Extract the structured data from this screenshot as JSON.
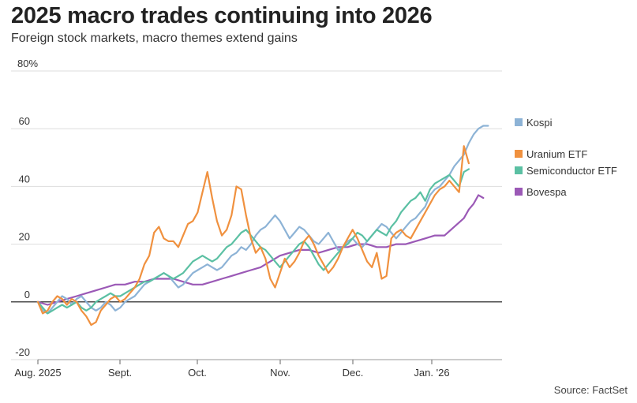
{
  "header": {
    "title": "2025 macro trades continuing into 2026",
    "subtitle": "Foreign stock markets, macro themes extend gains"
  },
  "footer": {
    "source": "Source: FactSet"
  },
  "chart_data": {
    "type": "line",
    "title": "2025 macro trades continuing into 2026",
    "subtitle": "Foreign stock markets, macro themes extend gains",
    "x_ticks": [
      "Aug. 2025",
      "Sept.",
      "Oct.",
      "Nov.",
      "Dec.",
      "Jan. '26"
    ],
    "y_ticks": [
      -20,
      0,
      20,
      40,
      60
    ],
    "y_top_label": "80%",
    "ylim": [
      -20,
      80
    ],
    "x_range_days": [
      0,
      180
    ],
    "grid": true,
    "legend_position": "right",
    "series": [
      {
        "name": "Kospi",
        "color": "#8db3d6",
        "points": [
          [
            0,
            0
          ],
          [
            2,
            -3
          ],
          [
            4,
            -4
          ],
          [
            6,
            -2
          ],
          [
            8,
            0
          ],
          [
            10,
            2
          ],
          [
            12,
            1
          ],
          [
            14,
            -1
          ],
          [
            16,
            1
          ],
          [
            18,
            2
          ],
          [
            20,
            0
          ],
          [
            22,
            -2
          ],
          [
            24,
            -3
          ],
          [
            26,
            -2
          ],
          [
            28,
            0
          ],
          [
            30,
            -1
          ],
          [
            32,
            -3
          ],
          [
            34,
            -2
          ],
          [
            36,
            0
          ],
          [
            38,
            1
          ],
          [
            40,
            2
          ],
          [
            42,
            4
          ],
          [
            44,
            6
          ],
          [
            46,
            7
          ],
          [
            48,
            8
          ],
          [
            50,
            9
          ],
          [
            52,
            10
          ],
          [
            54,
            9
          ],
          [
            56,
            7
          ],
          [
            58,
            5
          ],
          [
            60,
            6
          ],
          [
            62,
            8
          ],
          [
            64,
            10
          ],
          [
            66,
            11
          ],
          [
            68,
            12
          ],
          [
            70,
            13
          ],
          [
            72,
            12
          ],
          [
            74,
            11
          ],
          [
            76,
            12
          ],
          [
            78,
            14
          ],
          [
            80,
            16
          ],
          [
            82,
            17
          ],
          [
            84,
            19
          ],
          [
            86,
            18
          ],
          [
            88,
            20
          ],
          [
            90,
            23
          ],
          [
            92,
            25
          ],
          [
            94,
            26
          ],
          [
            96,
            28
          ],
          [
            98,
            30
          ],
          [
            100,
            28
          ],
          [
            102,
            25
          ],
          [
            104,
            22
          ],
          [
            106,
            24
          ],
          [
            108,
            26
          ],
          [
            110,
            25
          ],
          [
            112,
            23
          ],
          [
            114,
            21
          ],
          [
            116,
            20
          ],
          [
            118,
            22
          ],
          [
            120,
            24
          ],
          [
            122,
            21
          ],
          [
            124,
            18
          ],
          [
            126,
            19
          ],
          [
            128,
            21
          ],
          [
            130,
            22
          ],
          [
            132,
            20
          ],
          [
            134,
            19
          ],
          [
            136,
            21
          ],
          [
            138,
            23
          ],
          [
            140,
            25
          ],
          [
            142,
            27
          ],
          [
            144,
            26
          ],
          [
            146,
            24
          ],
          [
            148,
            22
          ],
          [
            150,
            24
          ],
          [
            152,
            26
          ],
          [
            154,
            28
          ],
          [
            156,
            29
          ],
          [
            158,
            31
          ],
          [
            160,
            33
          ],
          [
            162,
            37
          ],
          [
            164,
            39
          ],
          [
            166,
            40
          ],
          [
            168,
            42
          ],
          [
            170,
            44
          ],
          [
            172,
            47
          ],
          [
            174,
            49
          ],
          [
            176,
            51
          ],
          [
            178,
            55
          ],
          [
            180,
            58
          ],
          [
            182,
            60
          ],
          [
            184,
            61
          ],
          [
            186,
            61
          ]
        ]
      },
      {
        "name": "Uranium ETF",
        "color": "#f0913f",
        "points": [
          [
            0,
            0
          ],
          [
            2,
            -4
          ],
          [
            4,
            -3
          ],
          [
            6,
            0
          ],
          [
            8,
            2
          ],
          [
            10,
            1
          ],
          [
            12,
            -1
          ],
          [
            14,
            1
          ],
          [
            16,
            0
          ],
          [
            18,
            -3
          ],
          [
            20,
            -5
          ],
          [
            22,
            -8
          ],
          [
            24,
            -7
          ],
          [
            26,
            -3
          ],
          [
            28,
            -1
          ],
          [
            30,
            1
          ],
          [
            32,
            2
          ],
          [
            34,
            0
          ],
          [
            36,
            1
          ],
          [
            38,
            3
          ],
          [
            40,
            5
          ],
          [
            42,
            8
          ],
          [
            44,
            13
          ],
          [
            46,
            16
          ],
          [
            48,
            24
          ],
          [
            50,
            26
          ],
          [
            52,
            22
          ],
          [
            54,
            21
          ],
          [
            56,
            21
          ],
          [
            58,
            19
          ],
          [
            60,
            23
          ],
          [
            62,
            27
          ],
          [
            64,
            28
          ],
          [
            66,
            31
          ],
          [
            68,
            38
          ],
          [
            70,
            45
          ],
          [
            72,
            36
          ],
          [
            74,
            28
          ],
          [
            76,
            23
          ],
          [
            78,
            25
          ],
          [
            80,
            30
          ],
          [
            82,
            40
          ],
          [
            84,
            39
          ],
          [
            86,
            30
          ],
          [
            88,
            22
          ],
          [
            90,
            17
          ],
          [
            92,
            19
          ],
          [
            94,
            15
          ],
          [
            96,
            8
          ],
          [
            98,
            5
          ],
          [
            100,
            10
          ],
          [
            102,
            15
          ],
          [
            104,
            12
          ],
          [
            106,
            14
          ],
          [
            108,
            17
          ],
          [
            110,
            21
          ],
          [
            112,
            23
          ],
          [
            114,
            20
          ],
          [
            116,
            16
          ],
          [
            118,
            13
          ],
          [
            120,
            10
          ],
          [
            122,
            12
          ],
          [
            124,
            15
          ],
          [
            126,
            19
          ],
          [
            128,
            22
          ],
          [
            130,
            25
          ],
          [
            132,
            22
          ],
          [
            134,
            18
          ],
          [
            136,
            14
          ],
          [
            138,
            12
          ],
          [
            140,
            17
          ],
          [
            142,
            8
          ],
          [
            144,
            9
          ],
          [
            146,
            22
          ],
          [
            148,
            24
          ],
          [
            150,
            25
          ],
          [
            152,
            23
          ],
          [
            154,
            22
          ],
          [
            156,
            25
          ],
          [
            158,
            28
          ],
          [
            160,
            31
          ],
          [
            162,
            34
          ],
          [
            164,
            37
          ],
          [
            166,
            39
          ],
          [
            168,
            40
          ],
          [
            170,
            42
          ],
          [
            172,
            40
          ],
          [
            174,
            38
          ],
          [
            176,
            54
          ],
          [
            178,
            48
          ]
        ]
      },
      {
        "name": "Semiconductor ETF",
        "color": "#5bc0a3",
        "points": [
          [
            0,
            0
          ],
          [
            2,
            -2
          ],
          [
            4,
            -4
          ],
          [
            6,
            -3
          ],
          [
            8,
            -2
          ],
          [
            10,
            -1
          ],
          [
            12,
            -2
          ],
          [
            14,
            -1
          ],
          [
            16,
            0
          ],
          [
            18,
            -2
          ],
          [
            20,
            -3
          ],
          [
            22,
            -2
          ],
          [
            24,
            0
          ],
          [
            26,
            1
          ],
          [
            28,
            2
          ],
          [
            30,
            3
          ],
          [
            32,
            2
          ],
          [
            34,
            2
          ],
          [
            36,
            3
          ],
          [
            38,
            4
          ],
          [
            40,
            5
          ],
          [
            42,
            6
          ],
          [
            44,
            7
          ],
          [
            46,
            7
          ],
          [
            48,
            8
          ],
          [
            50,
            9
          ],
          [
            52,
            10
          ],
          [
            54,
            9
          ],
          [
            56,
            8
          ],
          [
            58,
            9
          ],
          [
            60,
            10
          ],
          [
            62,
            12
          ],
          [
            64,
            14
          ],
          [
            66,
            15
          ],
          [
            68,
            16
          ],
          [
            70,
            15
          ],
          [
            72,
            14
          ],
          [
            74,
            15
          ],
          [
            76,
            17
          ],
          [
            78,
            19
          ],
          [
            80,
            20
          ],
          [
            82,
            22
          ],
          [
            84,
            24
          ],
          [
            86,
            25
          ],
          [
            88,
            23
          ],
          [
            90,
            21
          ],
          [
            92,
            19
          ],
          [
            94,
            18
          ],
          [
            96,
            16
          ],
          [
            98,
            14
          ],
          [
            100,
            12
          ],
          [
            102,
            14
          ],
          [
            104,
            16
          ],
          [
            106,
            18
          ],
          [
            108,
            20
          ],
          [
            110,
            21
          ],
          [
            112,
            19
          ],
          [
            114,
            16
          ],
          [
            116,
            13
          ],
          [
            118,
            11
          ],
          [
            120,
            13
          ],
          [
            122,
            15
          ],
          [
            124,
            17
          ],
          [
            126,
            19
          ],
          [
            128,
            20
          ],
          [
            130,
            22
          ],
          [
            132,
            24
          ],
          [
            134,
            23
          ],
          [
            136,
            21
          ],
          [
            138,
            23
          ],
          [
            140,
            25
          ],
          [
            142,
            24
          ],
          [
            144,
            23
          ],
          [
            146,
            26
          ],
          [
            148,
            28
          ],
          [
            150,
            31
          ],
          [
            152,
            33
          ],
          [
            154,
            35
          ],
          [
            156,
            36
          ],
          [
            158,
            38
          ],
          [
            160,
            35
          ],
          [
            162,
            39
          ],
          [
            164,
            41
          ],
          [
            166,
            42
          ],
          [
            168,
            43
          ],
          [
            170,
            44
          ],
          [
            172,
            42
          ],
          [
            174,
            40
          ],
          [
            176,
            45
          ],
          [
            178,
            46
          ]
        ]
      },
      {
        "name": "Bovespa",
        "color": "#9b59b6",
        "points": [
          [
            0,
            0
          ],
          [
            4,
            -1
          ],
          [
            8,
            0
          ],
          [
            12,
            1
          ],
          [
            16,
            2
          ],
          [
            20,
            3
          ],
          [
            24,
            4
          ],
          [
            28,
            5
          ],
          [
            32,
            6
          ],
          [
            36,
            6
          ],
          [
            40,
            7
          ],
          [
            44,
            7
          ],
          [
            48,
            8
          ],
          [
            52,
            8
          ],
          [
            56,
            8
          ],
          [
            60,
            7
          ],
          [
            64,
            6
          ],
          [
            68,
            6
          ],
          [
            72,
            7
          ],
          [
            76,
            8
          ],
          [
            80,
            9
          ],
          [
            84,
            10
          ],
          [
            88,
            11
          ],
          [
            92,
            12
          ],
          [
            96,
            14
          ],
          [
            100,
            16
          ],
          [
            104,
            17
          ],
          [
            108,
            18
          ],
          [
            112,
            18
          ],
          [
            116,
            17
          ],
          [
            120,
            18
          ],
          [
            124,
            19
          ],
          [
            128,
            19
          ],
          [
            132,
            20
          ],
          [
            136,
            20
          ],
          [
            140,
            19
          ],
          [
            144,
            19
          ],
          [
            148,
            20
          ],
          [
            152,
            20
          ],
          [
            156,
            21
          ],
          [
            160,
            22
          ],
          [
            164,
            23
          ],
          [
            168,
            23
          ],
          [
            172,
            26
          ],
          [
            176,
            29
          ],
          [
            178,
            32
          ],
          [
            180,
            34
          ],
          [
            182,
            37
          ],
          [
            184,
            36
          ]
        ]
      }
    ]
  }
}
